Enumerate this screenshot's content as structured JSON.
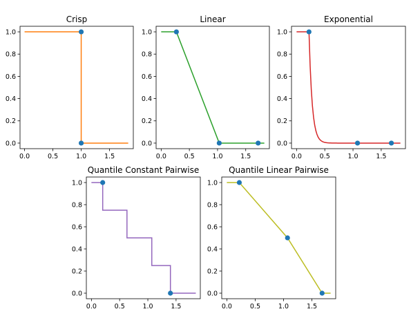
{
  "chart_data": [
    {
      "type": "line",
      "title": "Crisp",
      "color": "#ff7f0e",
      "marker_color": "#1f77b4",
      "xlim": [
        -0.08,
        1.92
      ],
      "ylim": [
        -0.05,
        1.05
      ],
      "xticks": [
        0,
        0.5,
        1.0,
        1.5
      ],
      "xtick_labels": [
        "0.0",
        "0.5",
        "1.0",
        "1.5"
      ],
      "yticks": [
        0,
        0.2,
        0.4,
        0.6,
        0.8,
        1.0
      ],
      "ytick_labels": [
        "0.0",
        "0.2",
        "0.4",
        "0.6",
        "0.8",
        "1.0"
      ],
      "x": [
        0,
        1.0,
        1.0,
        1.83
      ],
      "y": [
        1,
        1,
        0,
        0
      ],
      "points": [
        [
          1.0,
          1.0
        ],
        [
          1.0,
          0.0
        ]
      ]
    },
    {
      "type": "line",
      "title": "Linear",
      "color": "#2ca02c",
      "marker_color": "#1f77b4",
      "xlim": [
        -0.09,
        1.92
      ],
      "ylim": [
        -0.05,
        1.05
      ],
      "xticks": [
        0,
        0.5,
        1.0,
        1.5
      ],
      "xtick_labels": [
        "0.0",
        "0.5",
        "1.0",
        "1.5"
      ],
      "yticks": [
        0,
        0.2,
        0.4,
        0.6,
        0.8,
        1.0
      ],
      "ytick_labels": [
        "0.0",
        "0.2",
        "0.4",
        "0.6",
        "0.8",
        "1.0"
      ],
      "x": [
        0,
        0.27,
        1.03,
        1.83
      ],
      "y": [
        1,
        1,
        0,
        0
      ],
      "points": [
        [
          0.27,
          1.0
        ],
        [
          1.03,
          0.0
        ],
        [
          1.72,
          0.0
        ]
      ]
    },
    {
      "type": "line",
      "title": "Exponential",
      "color": "#d62728",
      "marker_color": "#1f77b4",
      "xlim": [
        -0.09,
        1.93
      ],
      "ylim": [
        -0.05,
        1.05
      ],
      "xticks": [
        0,
        0.5,
        1.0,
        1.5
      ],
      "xtick_labels": [
        "0.0",
        "0.5",
        "1.0",
        "1.5"
      ],
      "yticks": [
        0,
        0.2,
        0.4,
        0.6,
        0.8,
        1.0
      ],
      "ytick_labels": [
        "0.0",
        "0.2",
        "0.4",
        "0.6",
        "0.8",
        "1.0"
      ],
      "curve": {
        "x0": 0.22,
        "decay": 18,
        "x_start": 0,
        "x_end": 1.84
      },
      "points": [
        [
          0.22,
          1.0
        ],
        [
          1.08,
          0.0
        ],
        [
          1.68,
          0.0
        ]
      ]
    },
    {
      "type": "line",
      "title": "Quantile Constant Pairwise",
      "color": "#9467bd",
      "marker_color": "#1f77b4",
      "xlim": [
        -0.09,
        1.93
      ],
      "ylim": [
        -0.05,
        1.05
      ],
      "xticks": [
        0,
        0.5,
        1.0,
        1.5
      ],
      "xtick_labels": [
        "0.0",
        "0.5",
        "1.0",
        "1.5"
      ],
      "yticks": [
        0,
        0.2,
        0.4,
        0.6,
        0.8,
        1.0
      ],
      "ytick_labels": [
        "0.0",
        "0.2",
        "0.4",
        "0.6",
        "0.8",
        "1.0"
      ],
      "x": [
        0,
        0.2,
        0.2,
        0.63,
        0.63,
        1.07,
        1.07,
        1.4,
        1.4,
        1.85
      ],
      "y": [
        1,
        1,
        0.75,
        0.75,
        0.5,
        0.5,
        0.25,
        0.25,
        0,
        0
      ],
      "points": [
        [
          0.2,
          1.0
        ],
        [
          1.4,
          0.0
        ]
      ]
    },
    {
      "type": "line",
      "title": "Quantile Linear Pairwise",
      "color": "#bcbd22",
      "marker_color": "#1f77b4",
      "xlim": [
        -0.09,
        1.92
      ],
      "ylim": [
        -0.05,
        1.05
      ],
      "xticks": [
        0,
        0.5,
        1.0,
        1.5
      ],
      "xtick_labels": [
        "0.0",
        "0.5",
        "1.0",
        "1.5"
      ],
      "yticks": [
        0,
        0.2,
        0.4,
        0.6,
        0.8,
        1.0
      ],
      "ytick_labels": [
        "0.0",
        "0.2",
        "0.4",
        "0.6",
        "0.8",
        "1.0"
      ],
      "x": [
        0,
        0.22,
        1.07,
        1.68,
        1.83
      ],
      "y": [
        1,
        1,
        0.5,
        0,
        0
      ],
      "points": [
        [
          0.22,
          1.0
        ],
        [
          1.07,
          0.5
        ],
        [
          1.68,
          0.0
        ]
      ]
    }
  ]
}
